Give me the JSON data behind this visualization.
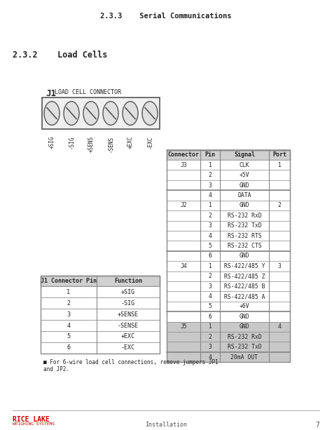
{
  "title_233": "2.3.3    Serial Communications",
  "title_232": "2.3.2    Load Cells",
  "j1_title": "J1 LOAD CELL CONNECTOR",
  "j1_labels": [
    "+SIG",
    "-SIG",
    "+SENS",
    "-SENS",
    "+EXC",
    "-EXC"
  ],
  "connector_table_headers": [
    "Connector",
    "Pin",
    "Signal",
    "Port"
  ],
  "connector_table_data": [
    [
      "J3",
      "1",
      "CLK",
      "1"
    ],
    [
      "",
      "2",
      "+5V",
      ""
    ],
    [
      "",
      "3",
      "GND",
      ""
    ],
    [
      "",
      "4",
      "DATA",
      ""
    ],
    [
      "J2",
      "1",
      "GND",
      "2"
    ],
    [
      "",
      "2",
      "RS-232 RxD",
      ""
    ],
    [
      "",
      "3",
      "RS-232 TxD",
      ""
    ],
    [
      "",
      "4",
      "RS-232 RTS",
      ""
    ],
    [
      "",
      "5",
      "RS-232 CTS",
      ""
    ],
    [
      "",
      "6",
      "GND",
      ""
    ],
    [
      "J4",
      "1",
      "RS-422/485 Y",
      "3"
    ],
    [
      "",
      "2",
      "RS-422/485 Z",
      ""
    ],
    [
      "",
      "3",
      "RS-422/485 B",
      ""
    ],
    [
      "",
      "4",
      "RS-422/485 A",
      ""
    ],
    [
      "",
      "5",
      "+6V",
      ""
    ],
    [
      "",
      "6",
      "GND",
      ""
    ],
    [
      "J5",
      "1",
      "GND",
      "4"
    ],
    [
      "",
      "2",
      "RS-232 RxD",
      ""
    ],
    [
      "",
      "3",
      "RS-232 TxD",
      ""
    ],
    [
      "",
      "4",
      "20mA OUT",
      ""
    ]
  ],
  "j1_table_headers": [
    "J1 Connector Pin",
    "Function"
  ],
  "j1_table_data": [
    [
      "1",
      "+SIG"
    ],
    [
      "2",
      "-SIG"
    ],
    [
      "3",
      "+SENSE"
    ],
    [
      "4",
      "-SENSE"
    ],
    [
      "5",
      "+EXC"
    ],
    [
      "6",
      "-EXC"
    ]
  ],
  "j1_note": "For 6-wire load cell connections, remove jumpers JP1\nand JP2.",
  "footer_text": "Installation",
  "footer_page": "7",
  "bg_color": "#ffffff",
  "header_bg": "#d0d0d0",
  "row_bg": "#ffffff",
  "border_color": "#888888",
  "text_color": "#222222",
  "j5_highlight": "#c8c8c8"
}
